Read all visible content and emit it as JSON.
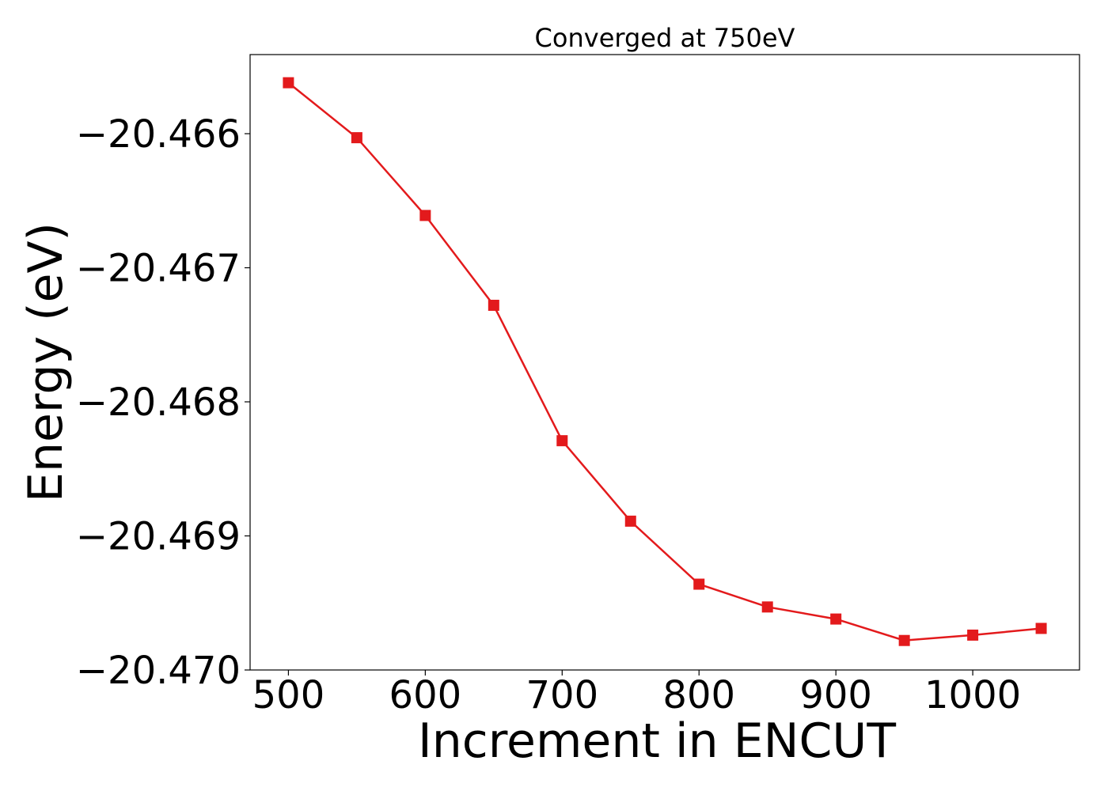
{
  "chart_data": {
    "type": "line",
    "title": "Converged at 750eV",
    "xlabel": "Increment in ENCUT",
    "ylabel": "Energy (eV)",
    "xlim": [
      472,
      1078
    ],
    "ylim": [
      -20.47,
      -20.46541
    ],
    "x_ticks": [
      500,
      600,
      700,
      800,
      900,
      1000
    ],
    "y_ticks": [
      -20.466,
      -20.467,
      -20.468,
      -20.469,
      -20.47
    ],
    "x_tick_labels": [
      "500",
      "600",
      "700",
      "800",
      "900",
      "1000"
    ],
    "y_tick_labels": [
      "−20.466",
      "−20.467",
      "−20.468",
      "−20.469",
      "−20.470"
    ],
    "grid": false,
    "color": "#e31a1c",
    "marker": "square",
    "series": [
      {
        "x": [
          500,
          550,
          600,
          650,
          700,
          750,
          800,
          850,
          900,
          950,
          1000,
          1050
        ],
        "values": [
          -20.46562,
          -20.46603,
          -20.46661,
          -20.46728,
          -20.46829,
          -20.46889,
          -20.46936,
          -20.46953,
          -20.46962,
          -20.46978,
          -20.46974,
          -20.46969
        ]
      }
    ]
  }
}
